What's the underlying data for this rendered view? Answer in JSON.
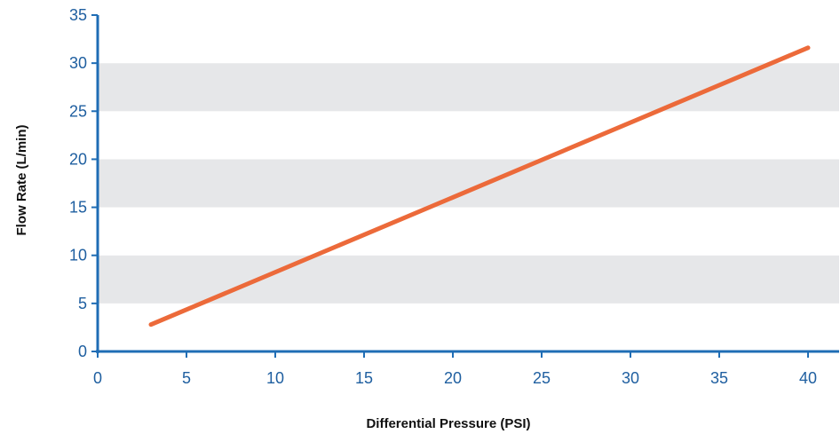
{
  "chart_data": {
    "type": "line",
    "title": "",
    "xlabel": "Differential Pressure (PSI)",
    "ylabel": "Flow Rate (L/min)",
    "xlim": [
      0,
      40
    ],
    "ylim": [
      0,
      35
    ],
    "xticks": [
      "0",
      "5",
      "10",
      "15",
      "20",
      "25",
      "30",
      "35",
      "40"
    ],
    "yticks": [
      "0",
      "5",
      "10",
      "15",
      "20",
      "25",
      "30",
      "35"
    ],
    "grid": "alternating horizontal bands",
    "legend": "none",
    "series": [
      {
        "x": [
          3,
          40
        ],
        "y": [
          2.8,
          31.6
        ]
      }
    ],
    "colors": {
      "line": "#ec6a3a",
      "axis": "#1f6db5",
      "tick_text": "#1f5fa0",
      "band": "#e6e7e9"
    }
  }
}
